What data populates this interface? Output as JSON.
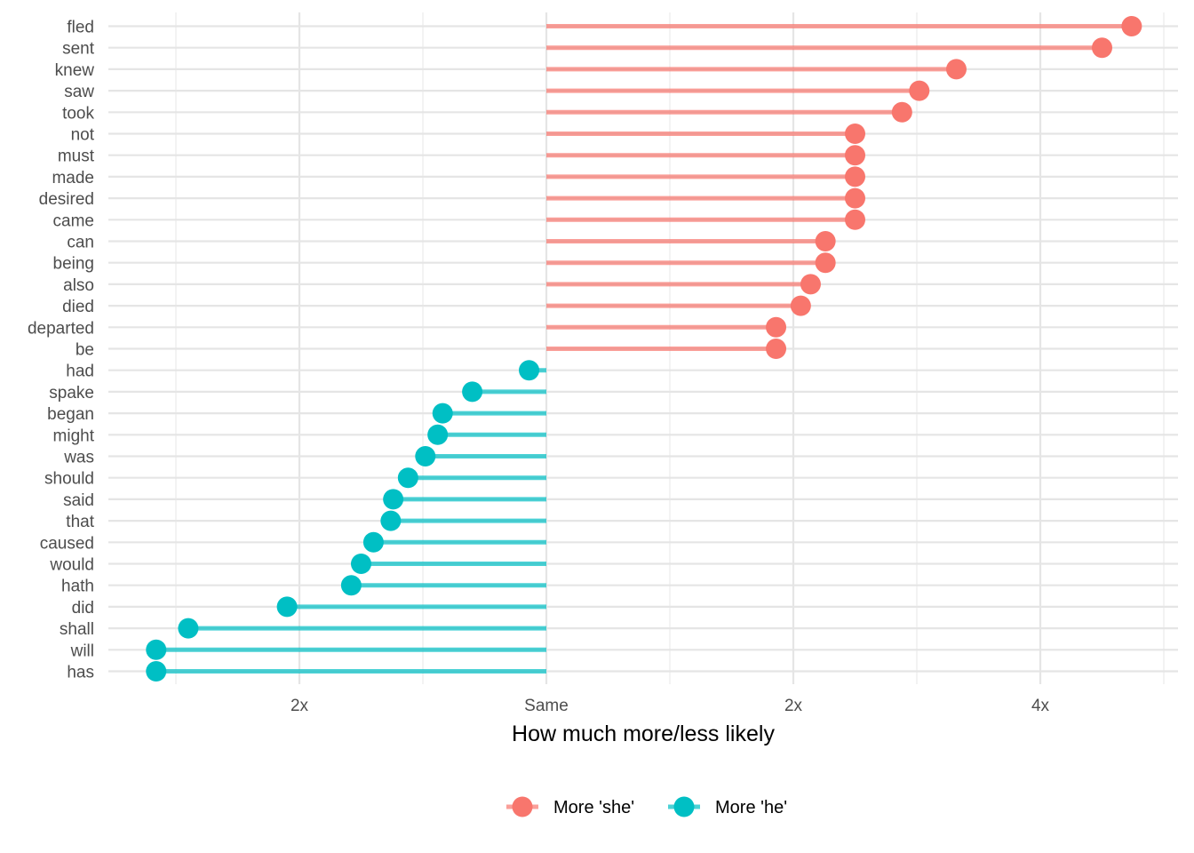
{
  "chart_data": {
    "type": "lollipop",
    "xlabel": "How much more/less likely",
    "x_scale": "log2 ratio",
    "x_ticks": [
      {
        "value": -1,
        "label": "2x"
      },
      {
        "value": 0,
        "label": "Same"
      },
      {
        "value": 1,
        "label": "2x"
      },
      {
        "value": 2,
        "label": "4x"
      }
    ],
    "xlim": [
      -1.77,
      2.55
    ],
    "grid": true,
    "legend_position": "bottom",
    "colors": {
      "she": "#F8766D",
      "he": "#00BFC4"
    },
    "series": [
      {
        "key": "she",
        "name": "More 'she'"
      },
      {
        "key": "he",
        "name": "More 'he'"
      }
    ],
    "points": [
      {
        "word": "fled",
        "value": 2.37,
        "group": "she"
      },
      {
        "word": "sent",
        "value": 2.25,
        "group": "she"
      },
      {
        "word": "knew",
        "value": 1.66,
        "group": "she"
      },
      {
        "word": "saw",
        "value": 1.51,
        "group": "she"
      },
      {
        "word": "took",
        "value": 1.44,
        "group": "she"
      },
      {
        "word": "not",
        "value": 1.25,
        "group": "she"
      },
      {
        "word": "must",
        "value": 1.25,
        "group": "she"
      },
      {
        "word": "made",
        "value": 1.25,
        "group": "she"
      },
      {
        "word": "desired",
        "value": 1.25,
        "group": "she"
      },
      {
        "word": "came",
        "value": 1.25,
        "group": "she"
      },
      {
        "word": "can",
        "value": 1.13,
        "group": "she"
      },
      {
        "word": "being",
        "value": 1.13,
        "group": "she"
      },
      {
        "word": "also",
        "value": 1.07,
        "group": "she"
      },
      {
        "word": "died",
        "value": 1.03,
        "group": "she"
      },
      {
        "word": "departed",
        "value": 0.93,
        "group": "she"
      },
      {
        "word": "be",
        "value": 0.93,
        "group": "she"
      },
      {
        "word": "had",
        "value": -0.07,
        "group": "he"
      },
      {
        "word": "spake",
        "value": -0.3,
        "group": "he"
      },
      {
        "word": "began",
        "value": -0.42,
        "group": "he"
      },
      {
        "word": "might",
        "value": -0.44,
        "group": "he"
      },
      {
        "word": "was",
        "value": -0.49,
        "group": "he"
      },
      {
        "word": "should",
        "value": -0.56,
        "group": "he"
      },
      {
        "word": "said",
        "value": -0.62,
        "group": "he"
      },
      {
        "word": "that",
        "value": -0.63,
        "group": "he"
      },
      {
        "word": "caused",
        "value": -0.7,
        "group": "he"
      },
      {
        "word": "would",
        "value": -0.75,
        "group": "he"
      },
      {
        "word": "hath",
        "value": -0.79,
        "group": "he"
      },
      {
        "word": "did",
        "value": -1.05,
        "group": "he"
      },
      {
        "word": "shall",
        "value": -1.45,
        "group": "he"
      },
      {
        "word": "will",
        "value": -1.58,
        "group": "he"
      },
      {
        "word": "has",
        "value": -1.58,
        "group": "he"
      }
    ]
  }
}
